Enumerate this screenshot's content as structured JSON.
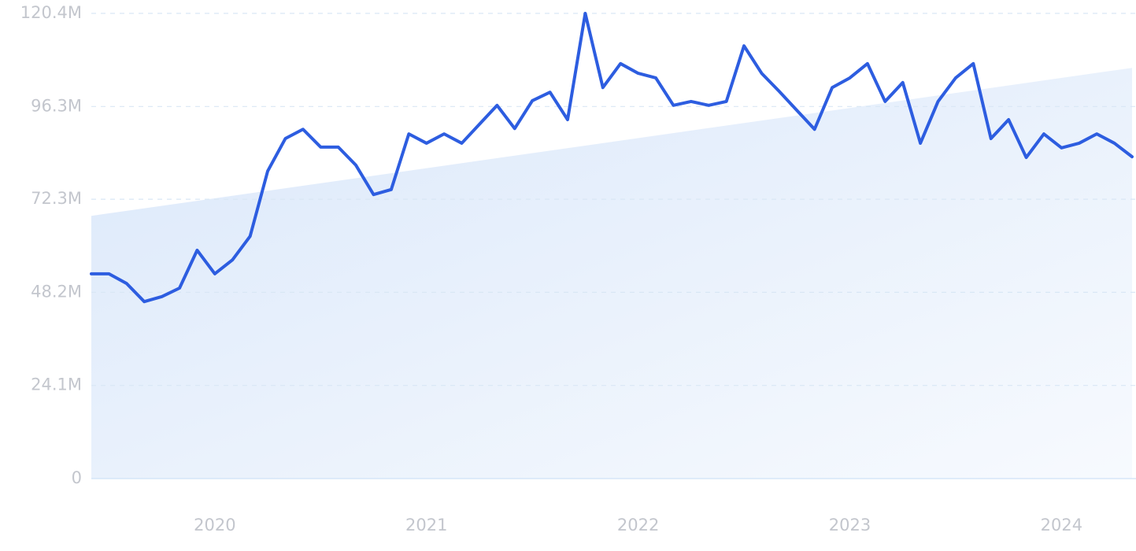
{
  "chart_data": {
    "type": "line",
    "categories": [
      null,
      null,
      null,
      null,
      null,
      null,
      null,
      "2020",
      null,
      null,
      null,
      null,
      null,
      null,
      null,
      null,
      null,
      null,
      null,
      "2021",
      null,
      null,
      null,
      null,
      null,
      null,
      null,
      null,
      null,
      null,
      null,
      "2022",
      null,
      null,
      null,
      null,
      null,
      null,
      null,
      null,
      null,
      null,
      null,
      "2023",
      null,
      null,
      null,
      null,
      null,
      null,
      null,
      null,
      null,
      null,
      null,
      "2024",
      null,
      null,
      null,
      null
    ],
    "series": [
      {
        "color": "#2d5de0",
        "values": [
          53.0,
          53.0,
          50.5,
          45.8,
          47.1,
          49.3,
          59.1,
          53.0,
          56.6,
          62.7,
          79.6,
          88.0,
          90.4,
          85.8,
          85.8,
          81.1,
          73.5,
          74.8,
          89.2,
          86.8,
          89.2,
          86.8,
          91.7,
          96.6,
          90.6,
          97.8,
          100.0,
          92.9,
          120.4,
          101.2,
          107.4,
          104.9,
          103.7,
          96.6,
          97.6,
          96.6,
          97.6,
          112.0,
          104.9,
          100.2,
          95.3,
          90.4,
          101.2,
          103.7,
          107.4,
          97.6,
          102.5,
          86.8,
          97.6,
          103.7,
          107.4,
          88.0,
          92.9,
          83.1,
          89.2,
          85.6,
          86.8,
          89.2,
          86.8,
          83.3
        ]
      }
    ],
    "trend": [
      68.0,
      106.3
    ],
    "ylim": [
      0,
      120.4
    ],
    "yticks": [
      0,
      {
        "value": 24.1,
        "label": "24.1M"
      },
      {
        "value": 48.2,
        "label": "48.2M"
      },
      {
        "value": 72.3,
        "label": "72.3M"
      },
      {
        "value": 96.3,
        "label": "96.3M"
      },
      {
        "value": 120.4,
        "label": "120.4M"
      }
    ],
    "grid": true
  }
}
